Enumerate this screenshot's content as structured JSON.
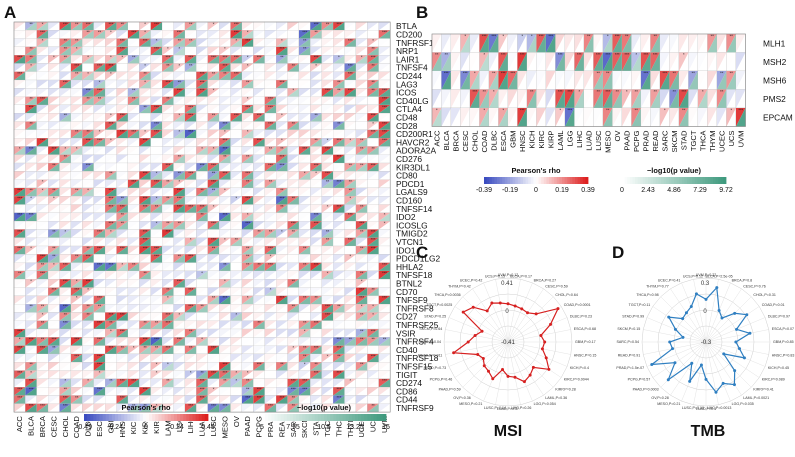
{
  "panels": {
    "a": "A",
    "b": "B",
    "c": "C",
    "d": "D"
  },
  "colors": {
    "neg": "#3b4cc0",
    "pos": "#dd1f1f",
    "sig": "#3f9a7e",
    "grid": "#bdbdbd",
    "msi_line": "#d62020",
    "tmb_line": "#2f7fc1"
  },
  "cancers": [
    "ACC",
    "BLCA",
    "BRCA",
    "CESC",
    "CHOL",
    "COAD",
    "DLBC",
    "ESCA",
    "GBM",
    "HNSC",
    "KICH",
    "KIRC",
    "KIRP",
    "LAML",
    "LGG",
    "LIHC",
    "LUAD",
    "LUSC",
    "MESO",
    "OV",
    "PAAD",
    "PCPG",
    "PRAD",
    "READ",
    "SARC",
    "SKCM",
    "STAD",
    "TGCT",
    "THCA",
    "THYM",
    "UCEC",
    "UCS",
    "UVM"
  ],
  "chart_data": [
    {
      "type": "heatmap",
      "panel": "A",
      "encoding": "each cell split diagonally: one triangle shows Pearson's rho, the other shows -log10(p value); asterisks mark significance",
      "x": [
        "ACC",
        "BLCA",
        "BRCA",
        "CESC",
        "CHOL",
        "COAD",
        "DLBC",
        "ESCA",
        "GBM",
        "HNSC",
        "KICH",
        "KIRC",
        "KIRP",
        "LAML",
        "LGG",
        "LIHC",
        "LUAD",
        "LUSC",
        "MESO",
        "OV",
        "PAAD",
        "PCPG",
        "PRAD",
        "READ",
        "SARC",
        "SKCM",
        "STAD",
        "TGCT",
        "THCA",
        "THYM",
        "UCEC",
        "UCS",
        "UVM"
      ],
      "y": [
        "BTLA",
        "CD200",
        "TNFRSF14",
        "NRP1",
        "LAIR1",
        "TNFSF4",
        "CD244",
        "LAG3",
        "ICOS",
        "CD40LG",
        "CTLA4",
        "CD48",
        "CD28",
        "CD200R1",
        "HAVCR2",
        "ADORA2A",
        "CD276",
        "KIR3DL1",
        "CD80",
        "PDCD1",
        "LGALS9",
        "CD160",
        "TNFSF14",
        "IDO2",
        "ICOSLG",
        "TMIGD2",
        "VTCN1",
        "IDO1",
        "PDCD1LG2",
        "HHLA2",
        "TNFSF18",
        "BTNL2",
        "CD70",
        "TNFSF9",
        "TNFRSF8",
        "CD27",
        "TNFRSF25",
        "VSIR",
        "TNFRSF4",
        "CD40",
        "TNFRSF18",
        "TNFSF15",
        "TIGIT",
        "CD274",
        "CD86",
        "CD44",
        "TNFRSF9"
      ],
      "rho_legend": {
        "title": "Pearson's rho",
        "ticks": [
          "-0.49",
          "-0.24",
          "0",
          "0.24",
          "0.49"
        ]
      },
      "p_legend": {
        "title": "−log10(p value)",
        "ticks": [
          "5",
          "7.75",
          "10.5",
          "13.25",
          "16"
        ]
      }
    },
    {
      "type": "heatmap",
      "panel": "B",
      "encoding": "each cell split diagonally: one triangle shows Pearson's rho, the other shows -log10(p value); asterisks mark significance",
      "x": [
        "ACC",
        "BLCA",
        "BRCA",
        "CESC",
        "CHOL",
        "COAD",
        "DLBC",
        "ESCA",
        "GBM",
        "HNSC",
        "KICH",
        "KIRC",
        "KIRP",
        "LAML",
        "LGG",
        "LIHC",
        "LUAD",
        "LUSC",
        "MESO",
        "OV",
        "PAAD",
        "PCPG",
        "PRAD",
        "READ",
        "SARC",
        "SKCM",
        "STAD",
        "TGCT",
        "THCA",
        "THYM",
        "UCEC",
        "UCS",
        "UVM"
      ],
      "y": [
        "MLH1",
        "MSH2",
        "MSH6",
        "PMS2",
        "EPCAM"
      ],
      "rho_legend": {
        "title": "Pearson's rho",
        "ticks": [
          "-0.39",
          "-0.19",
          "0",
          "0.19",
          "0.39"
        ]
      },
      "p_legend": {
        "title": "−log10(p value)",
        "ticks": [
          "0",
          "2.43",
          "4.86",
          "7.29",
          "9.72"
        ]
      }
    },
    {
      "type": "radar",
      "panel": "C",
      "title": "MSI",
      "rtick_labels": [
        "0.41",
        "0",
        "-0.41"
      ],
      "rlim": [
        -0.41,
        0.41
      ],
      "labels": [
        "UVM,P=0.12",
        "BLCA,P=0.17",
        "BRCA,P=0.27",
        "CESC,P=0.59",
        "CHOL,P=0.64",
        "COAD,P=0.0001",
        "DLBC,P=0.23",
        "ESCA,P=0.68",
        "GBM,P=0.17",
        "HNSC,P=0.15",
        "KICH,P=0.4",
        "KIRC,P=0.0044",
        "KIRP,P=0.28",
        "LAML,P=0.36",
        "LGG,P=0.054",
        "LIHC,P=0.26",
        "LUAD,P=0.37",
        "LUSC,P=0.14",
        "MESO,P=0.21",
        "OV,P=0.36",
        "PAAD,P=0.59",
        "PCPG,P=0.46",
        "PRAD,P=0.73",
        "READ,P=0.011",
        "SARC,P=0.04",
        "SKCM,P=0.64",
        "STAD,P=0.25",
        "TGCT,P=0.0025",
        "THCA,P=0.0036",
        "THYM,P=0.42",
        "UCEC,P=0.42",
        "UCS,P=0.15"
      ],
      "values": [
        0.08,
        0.06,
        0.05,
        0.04,
        0.1,
        0.36,
        0.18,
        0.02,
        0.06,
        0.04,
        0.12,
        0.22,
        0.05,
        0.1,
        0.14,
        0.05,
        0.03,
        -0.05,
        0.1,
        0.04,
        0.02,
        -0.03,
        0.01,
        0.3,
        0.1,
        0.02,
        -0.05,
        0.28,
        0.22,
        0.07,
        0.13,
        0.1
      ]
    },
    {
      "type": "radar",
      "panel": "D",
      "title": "TMB",
      "rtick_labels": [
        "0.3",
        "0",
        "-0.3"
      ],
      "rlim": [
        -0.3,
        0.3
      ],
      "labels": [
        "UVM,P=0.22",
        "BLCA,P=2.5e-05",
        "BRCA,P=0.8",
        "CESC,P=0.76",
        "CHOL,P=0.31",
        "COAD,P=0.01",
        "DLBC,P=0.97",
        "ESCA,P=0.07",
        "GBM,P=0.85",
        "HNSC,P=0.83",
        "KICH,P=0.45",
        "KIRC,P=0.089",
        "KIRP,P=0.41",
        "LAML,P=0.0021",
        "LGG,P=0.035",
        "LIHC,P=0.0013",
        "LUAD,P=0.3",
        "LUSC,P=0.19",
        "MESO,P=0.21",
        "OV,P=0.28",
        "PAAD,P=0.0003",
        "PCPG,P=0.57",
        "PRAD,P=1.5e-07",
        "READ,P=0.91",
        "SARC,P=0.54",
        "SKCM,P=0.15",
        "STAD,P=0.99",
        "TGCT,P=0.11",
        "THCA,P=0.98",
        "THYM,P=0.77",
        "UCEC,P=0.41",
        "UCS,P=0.12"
      ],
      "values": [
        0.1,
        0.22,
        0.02,
        -0.03,
        0.08,
        0.16,
        0.01,
        0.12,
        -0.02,
        0.02,
        0.09,
        -0.1,
        0.08,
        0.18,
        0.12,
        0.18,
        0.05,
        -0.08,
        0.1,
        -0.06,
        0.2,
        0.05,
        0.25,
        0.02,
        0.04,
        -0.08,
        0.01,
        0.12,
        0.01,
        0.03,
        0.06,
        0.16
      ]
    }
  ]
}
